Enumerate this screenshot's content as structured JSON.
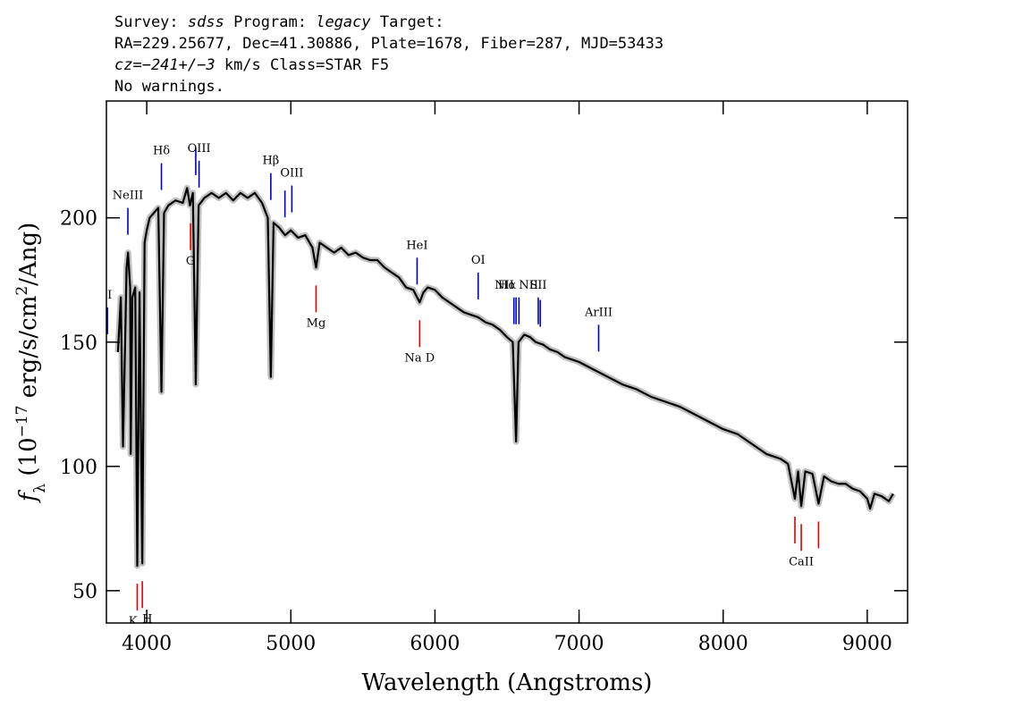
{
  "chart_data": {
    "type": "line",
    "title_lines": [
      [
        {
          "text": "Survey: "
        },
        {
          "text": "sdss",
          "italic": true
        },
        {
          "text": " Program: "
        },
        {
          "text": "legacy",
          "italic": true
        },
        {
          "text": " Target:"
        }
      ],
      [
        {
          "text": "RA=229.25677, Dec=41.30886, Plate=1678, Fiber=287, MJD=53433"
        }
      ],
      [
        {
          "text": "cz=−241+/−3",
          "italic": true
        },
        {
          "text": " km/s Class=STAR F5"
        }
      ],
      [
        {
          "text": "No warnings."
        }
      ]
    ],
    "x_label": "Wavelength (Angstroms)",
    "y_label": [
      {
        "text": "f",
        "italic": true
      },
      {
        "text": "λ",
        "sub": true
      },
      {
        "text": " (10"
      },
      {
        "text": "−17",
        "sup": true
      },
      {
        "text": " erg/s/cm"
      },
      {
        "text": "2",
        "sup": true
      },
      {
        "text": "/Ang)"
      }
    ],
    "x": [
      3800,
      3820,
      3835,
      3850,
      3860,
      3870,
      3885,
      3889,
      3900,
      3920,
      3934,
      3950,
      3969,
      3985,
      4000,
      4020,
      4050,
      4080,
      4102,
      4120,
      4150,
      4200,
      4250,
      4280,
      4300,
      4320,
      4340,
      4360,
      4400,
      4450,
      4500,
      4550,
      4600,
      4650,
      4700,
      4750,
      4800,
      4840,
      4861,
      4880,
      4920,
      4960,
      5000,
      5050,
      5100,
      5150,
      5175,
      5200,
      5250,
      5300,
      5350,
      5400,
      5450,
      5500,
      5550,
      5600,
      5650,
      5700,
      5750,
      5800,
      5850,
      5894,
      5920,
      5950,
      6000,
      6050,
      6100,
      6150,
      6200,
      6250,
      6300,
      6350,
      6400,
      6450,
      6500,
      6540,
      6563,
      6580,
      6620,
      6660,
      6700,
      6750,
      6800,
      6850,
      6900,
      6950,
      7000,
      7100,
      7200,
      7300,
      7400,
      7500,
      7600,
      7700,
      7800,
      7900,
      8000,
      8100,
      8200,
      8300,
      8400,
      8450,
      8498,
      8520,
      8542,
      8570,
      8620,
      8662,
      8700,
      8750,
      8800,
      8850,
      8900,
      8950,
      9000,
      9020,
      9050,
      9100,
      9150,
      9180
    ],
    "series": [
      {
        "color": "#000000",
        "band_color": "#c0c0c0",
        "values": [
          146,
          168,
          108,
          150,
          180,
          186,
          172,
          105,
          168,
          172,
          60,
          170,
          61,
          190,
          195,
          200,
          202,
          204,
          130,
          202,
          205,
          207,
          206,
          212,
          205,
          210,
          133,
          205,
          208,
          210,
          208,
          210,
          207,
          210,
          208,
          210,
          206,
          200,
          136,
          198,
          196,
          193,
          195,
          192,
          193,
          188,
          180,
          190,
          188,
          186,
          188,
          185,
          186,
          184,
          183,
          183,
          180,
          178,
          176,
          172,
          171,
          166,
          170,
          172,
          171,
          168,
          166,
          164,
          162,
          161,
          160,
          158,
          157,
          155,
          152,
          150,
          110,
          150,
          153,
          152,
          150,
          149,
          147,
          146,
          144,
          143,
          142,
          139,
          136,
          133,
          131,
          128,
          126,
          124,
          121,
          118,
          115,
          113,
          109,
          105,
          103,
          101,
          87,
          98,
          84,
          98,
          97,
          85,
          96,
          94,
          93,
          93,
          91,
          90,
          87,
          83,
          89,
          88,
          86,
          89
        ]
      }
    ],
    "emission_lines": {
      "color": "#0000c8",
      "lines": [
        {
          "label": "II",
          "x": 3727
        },
        {
          "label": "NeIII",
          "x": 3869
        },
        {
          "label": "Hδ",
          "x": 4102
        },
        {
          "label": null,
          "x": 4340
        },
        {
          "label": "OIII",
          "x": 4363
        },
        {
          "label": "Hβ",
          "x": 4861
        },
        {
          "label": null,
          "x": 4959
        },
        {
          "label": "OIII",
          "x": 5007
        },
        {
          "label": "HeI",
          "x": 5876
        },
        {
          "label": "OI",
          "x": 6300
        },
        {
          "label": "NII",
          "x": 6548
        },
        {
          "label": "Hα",
          "x": 6563
        },
        {
          "label": "NII",
          "x": 6583
        },
        {
          "label": "SII",
          "x": 6717
        },
        {
          "label": null,
          "x": 6731
        },
        {
          "label": "ArIII",
          "x": 7136
        }
      ]
    },
    "absorption_lines": {
      "color": "#e00000",
      "lines": [
        {
          "label": "K",
          "x": 3934
        },
        {
          "label": "H",
          "x": 3969
        },
        {
          "label": "G",
          "x": 4304
        },
        {
          "label": "Mg",
          "x": 5175
        },
        {
          "label": "Na D",
          "x": 5894
        },
        {
          "label": null,
          "x": 8498
        },
        {
          "label": "CaII",
          "x": 8542
        },
        {
          "label": null,
          "x": 8662
        }
      ]
    },
    "xlim": [
      3720,
      9280
    ],
    "ylim": [
      37,
      247
    ],
    "xticks": [
      4000,
      5000,
      6000,
      7000,
      8000,
      9000
    ],
    "yticks": [
      50,
      100,
      150,
      200
    ]
  }
}
